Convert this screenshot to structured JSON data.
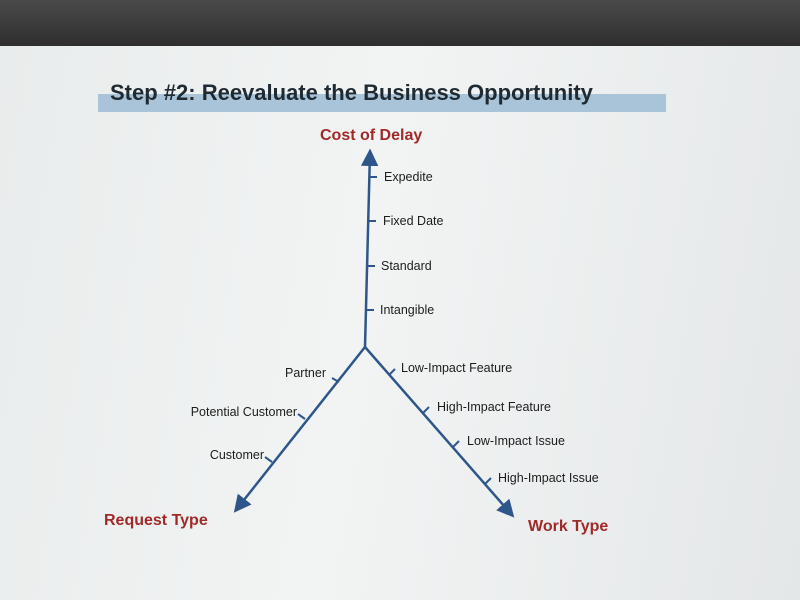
{
  "slide": {
    "title": "Step #2: Reevaluate the Business Opportunity"
  },
  "axes": {
    "cost_of_delay": {
      "title": "Cost of Delay",
      "levels": [
        "Expedite",
        "Fixed Date",
        "Standard",
        "Intangible"
      ]
    },
    "request_type": {
      "title": "Request Type",
      "levels": [
        "Partner",
        "Potential Customer",
        "Customer"
      ]
    },
    "work_type": {
      "title": "Work Type",
      "levels": [
        "Low-Impact Feature",
        "High-Impact Feature",
        "Low-Impact Issue",
        "High-Impact Issue"
      ]
    }
  },
  "colors": {
    "axis": "#2f5689",
    "axis_title": "#a02a2a",
    "title_highlight": "#a9c4d8"
  }
}
